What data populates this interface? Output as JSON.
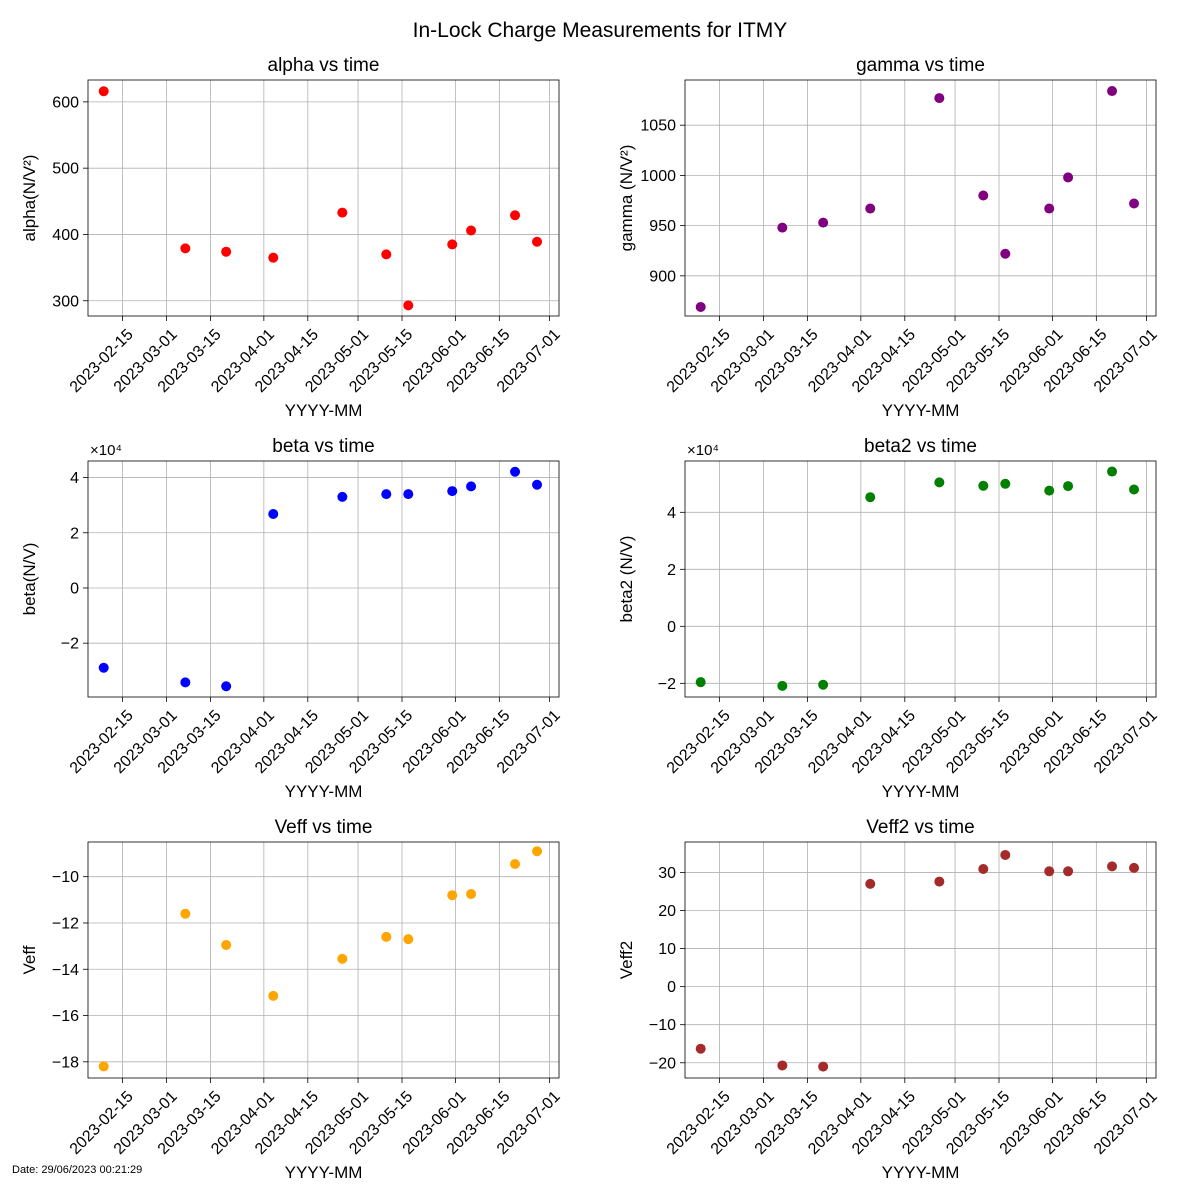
{
  "figure_title": "In-Lock Charge Measurements for ITMY",
  "footer": "Date: 29/06/2023 00:21:29",
  "chart_data": [
    {
      "type": "scatter",
      "title": "alpha vs time",
      "xlabel": "YYYY-MM",
      "ylabel": "alpha(N/V²)",
      "color": "#ff0000",
      "xlim": [
        "2023-02-04",
        "2023-07-04"
      ],
      "ylim": [
        277,
        633
      ],
      "yticks": [
        300,
        400,
        500,
        600
      ],
      "ytick_labels": [
        "300",
        "400",
        "500",
        "600"
      ],
      "y_multiplier_label": "",
      "xticks": [
        "2023-02-15",
        "2023-03-01",
        "2023-03-15",
        "2023-04-01",
        "2023-04-15",
        "2023-05-01",
        "2023-05-15",
        "2023-06-01",
        "2023-06-15",
        "2023-07-01"
      ],
      "grid": true,
      "points": [
        {
          "x": "2023-02-09",
          "y": 616
        },
        {
          "x": "2023-03-07",
          "y": 379
        },
        {
          "x": "2023-03-20",
          "y": 374
        },
        {
          "x": "2023-04-04",
          "y": 365
        },
        {
          "x": "2023-04-26",
          "y": 433
        },
        {
          "x": "2023-05-10",
          "y": 370
        },
        {
          "x": "2023-05-17",
          "y": 293
        },
        {
          "x": "2023-05-31",
          "y": 385
        },
        {
          "x": "2023-06-06",
          "y": 406
        },
        {
          "x": "2023-06-20",
          "y": 429
        },
        {
          "x": "2023-06-27",
          "y": 389
        }
      ]
    },
    {
      "type": "scatter",
      "title": "gamma vs time",
      "xlabel": "YYYY-MM",
      "ylabel": "gamma (N/V²)",
      "color": "#800080",
      "xlim": [
        "2023-02-04",
        "2023-07-04"
      ],
      "ylim": [
        860,
        1095
      ],
      "yticks": [
        900,
        950,
        1000,
        1050
      ],
      "ytick_labels": [
        "900",
        "950",
        "1000",
        "1050"
      ],
      "y_multiplier_label": "",
      "xticks": [
        "2023-02-15",
        "2023-03-01",
        "2023-03-15",
        "2023-04-01",
        "2023-04-15",
        "2023-05-01",
        "2023-05-15",
        "2023-06-01",
        "2023-06-15",
        "2023-07-01"
      ],
      "grid": true,
      "points": [
        {
          "x": "2023-02-09",
          "y": 869
        },
        {
          "x": "2023-03-07",
          "y": 948
        },
        {
          "x": "2023-03-20",
          "y": 953
        },
        {
          "x": "2023-04-04",
          "y": 967
        },
        {
          "x": "2023-04-26",
          "y": 1077
        },
        {
          "x": "2023-05-10",
          "y": 980
        },
        {
          "x": "2023-05-17",
          "y": 922
        },
        {
          "x": "2023-05-31",
          "y": 967
        },
        {
          "x": "2023-06-06",
          "y": 998
        },
        {
          "x": "2023-06-20",
          "y": 1084
        },
        {
          "x": "2023-06-27",
          "y": 972
        }
      ]
    },
    {
      "type": "scatter",
      "title": "beta vs time",
      "xlabel": "YYYY-MM",
      "ylabel": "beta(N/V)",
      "color": "#0000ff",
      "xlim": [
        "2023-02-04",
        "2023-07-04"
      ],
      "ylim": [
        -39500,
        46000
      ],
      "yticks": [
        -20000,
        0,
        20000,
        40000
      ],
      "ytick_labels": [
        "−2",
        "0",
        "2",
        "4"
      ],
      "y_multiplier_label": "×10⁴",
      "xticks": [
        "2023-02-15",
        "2023-03-01",
        "2023-03-15",
        "2023-04-01",
        "2023-04-15",
        "2023-05-01",
        "2023-05-15",
        "2023-06-01",
        "2023-06-15",
        "2023-07-01"
      ],
      "grid": true,
      "points": [
        {
          "x": "2023-02-09",
          "y": -28900
        },
        {
          "x": "2023-03-07",
          "y": -34200
        },
        {
          "x": "2023-03-20",
          "y": -35600
        },
        {
          "x": "2023-04-04",
          "y": 26800
        },
        {
          "x": "2023-04-26",
          "y": 33000
        },
        {
          "x": "2023-05-10",
          "y": 34000
        },
        {
          "x": "2023-05-17",
          "y": 34000
        },
        {
          "x": "2023-05-31",
          "y": 35100
        },
        {
          "x": "2023-06-06",
          "y": 36800
        },
        {
          "x": "2023-06-20",
          "y": 42100
        },
        {
          "x": "2023-06-27",
          "y": 37400
        }
      ]
    },
    {
      "type": "scatter",
      "title": "beta2 vs time",
      "xlabel": "YYYY-MM",
      "ylabel": "beta2 (N/V)",
      "color": "#008000",
      "xlim": [
        "2023-02-04",
        "2023-07-04"
      ],
      "ylim": [
        -24800,
        58000
      ],
      "yticks": [
        -20000,
        0,
        20000,
        40000
      ],
      "ytick_labels": [
        "−2",
        "0",
        "2",
        "4"
      ],
      "y_multiplier_label": "×10⁴",
      "xticks": [
        "2023-02-15",
        "2023-03-01",
        "2023-03-15",
        "2023-04-01",
        "2023-04-15",
        "2023-05-01",
        "2023-05-15",
        "2023-06-01",
        "2023-06-15",
        "2023-07-01"
      ],
      "grid": true,
      "points": [
        {
          "x": "2023-02-09",
          "y": -19600
        },
        {
          "x": "2023-03-07",
          "y": -20900
        },
        {
          "x": "2023-03-20",
          "y": -20500
        },
        {
          "x": "2023-04-04",
          "y": 45300
        },
        {
          "x": "2023-04-26",
          "y": 50500
        },
        {
          "x": "2023-05-10",
          "y": 49300
        },
        {
          "x": "2023-05-17",
          "y": 50000
        },
        {
          "x": "2023-05-31",
          "y": 47600
        },
        {
          "x": "2023-06-06",
          "y": 49200
        },
        {
          "x": "2023-06-20",
          "y": 54300
        },
        {
          "x": "2023-06-27",
          "y": 48000
        }
      ]
    },
    {
      "type": "scatter",
      "title": "Veff vs time",
      "xlabel": "YYYY-MM",
      "ylabel": "Veff",
      "color": "#ffa500",
      "xlim": [
        "2023-02-04",
        "2023-07-04"
      ],
      "ylim": [
        -18.7,
        -8.5
      ],
      "yticks": [
        -18,
        -16,
        -14,
        -12,
        -10
      ],
      "ytick_labels": [
        "−18",
        "−16",
        "−14",
        "−12",
        "−10"
      ],
      "y_multiplier_label": "",
      "xticks": [
        "2023-02-15",
        "2023-03-01",
        "2023-03-15",
        "2023-04-01",
        "2023-04-15",
        "2023-05-01",
        "2023-05-15",
        "2023-06-01",
        "2023-06-15",
        "2023-07-01"
      ],
      "grid": true,
      "points": [
        {
          "x": "2023-02-09",
          "y": -18.2
        },
        {
          "x": "2023-03-07",
          "y": -11.6
        },
        {
          "x": "2023-03-20",
          "y": -12.95
        },
        {
          "x": "2023-04-04",
          "y": -15.15
        },
        {
          "x": "2023-04-26",
          "y": -13.55
        },
        {
          "x": "2023-05-10",
          "y": -12.6
        },
        {
          "x": "2023-05-17",
          "y": -12.7
        },
        {
          "x": "2023-05-31",
          "y": -10.8
        },
        {
          "x": "2023-06-06",
          "y": -10.75
        },
        {
          "x": "2023-06-20",
          "y": -9.45
        },
        {
          "x": "2023-06-27",
          "y": -8.9
        }
      ]
    },
    {
      "type": "scatter",
      "title": "Veff2 vs time",
      "xlabel": "YYYY-MM",
      "ylabel": "Veff2",
      "color": "#a52a2a",
      "xlim": [
        "2023-02-04",
        "2023-07-04"
      ],
      "ylim": [
        -24,
        38
      ],
      "yticks": [
        -20,
        -10,
        0,
        10,
        20,
        30
      ],
      "ytick_labels": [
        "−20",
        "−10",
        "0",
        "10",
        "20",
        "30"
      ],
      "y_multiplier_label": "",
      "xticks": [
        "2023-02-15",
        "2023-03-01",
        "2023-03-15",
        "2023-04-01",
        "2023-04-15",
        "2023-05-01",
        "2023-05-15",
        "2023-06-01",
        "2023-06-15",
        "2023-07-01"
      ],
      "grid": true,
      "points": [
        {
          "x": "2023-02-09",
          "y": -16.3
        },
        {
          "x": "2023-03-07",
          "y": -20.7
        },
        {
          "x": "2023-03-20",
          "y": -21.0
        },
        {
          "x": "2023-04-04",
          "y": 27.0
        },
        {
          "x": "2023-04-26",
          "y": 27.6
        },
        {
          "x": "2023-05-10",
          "y": 30.9
        },
        {
          "x": "2023-05-17",
          "y": 34.6
        },
        {
          "x": "2023-05-31",
          "y": 30.3
        },
        {
          "x": "2023-06-06",
          "y": 30.3
        },
        {
          "x": "2023-06-20",
          "y": 31.6
        },
        {
          "x": "2023-06-27",
          "y": 31.2
        }
      ]
    }
  ]
}
